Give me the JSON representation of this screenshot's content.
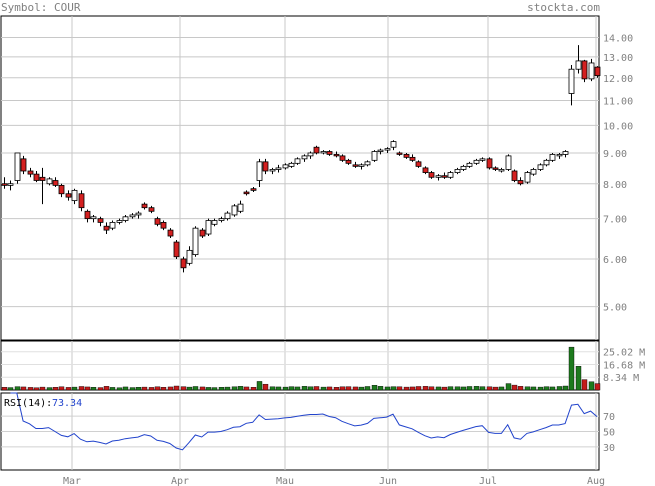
{
  "header": {
    "symbol_label": "Symbol:",
    "symbol": "COUR",
    "site": "stockta.com"
  },
  "chart_data": {
    "type": "candlestick",
    "price_axis": {
      "scale": "log",
      "ylim": [
        4.4,
        15.2
      ],
      "ticks": [
        "14.00",
        "13.00",
        "12.00",
        "11.00",
        "10.00",
        "9.00",
        "8.00",
        "7.00",
        "6.00",
        "5.00"
      ],
      "tick_values": [
        14,
        13,
        12,
        11,
        10,
        9,
        8,
        7,
        6,
        5
      ]
    },
    "x_axis": {
      "labels": [
        "Mar",
        "Apr",
        "Mau",
        "Jun",
        "Jul",
        "Aug"
      ],
      "grid": true
    },
    "candles": [
      [
        8.0,
        8.2,
        7.85,
        7.95
      ],
      [
        7.95,
        8.1,
        7.8,
        8.0
      ],
      [
        8.1,
        9.0,
        8.0,
        9.0
      ],
      [
        8.8,
        8.9,
        8.3,
        8.4
      ],
      [
        8.4,
        8.5,
        8.2,
        8.3
      ],
      [
        8.3,
        8.4,
        8.05,
        8.1
      ],
      [
        8.2,
        8.5,
        7.4,
        8.1
      ],
      [
        8.0,
        8.2,
        7.95,
        8.15
      ],
      [
        8.1,
        8.2,
        7.9,
        7.95
      ],
      [
        7.95,
        8.0,
        7.6,
        7.7
      ],
      [
        7.7,
        7.8,
        7.5,
        7.6
      ],
      [
        7.5,
        7.85,
        7.4,
        7.8
      ],
      [
        7.7,
        7.8,
        7.2,
        7.3
      ],
      [
        7.2,
        7.25,
        6.9,
        7.0
      ],
      [
        7.0,
        7.1,
        6.9,
        7.05
      ],
      [
        7.0,
        7.05,
        6.8,
        6.9
      ],
      [
        6.8,
        6.9,
        6.6,
        6.7
      ],
      [
        6.75,
        6.95,
        6.7,
        6.9
      ],
      [
        6.9,
        7.0,
        6.85,
        6.95
      ],
      [
        6.95,
        7.1,
        6.9,
        7.05
      ],
      [
        7.05,
        7.15,
        7.0,
        7.1
      ],
      [
        7.1,
        7.2,
        7.0,
        7.15
      ],
      [
        7.4,
        7.45,
        7.25,
        7.3
      ],
      [
        7.3,
        7.35,
        7.15,
        7.2
      ],
      [
        7.0,
        7.05,
        6.8,
        6.85
      ],
      [
        6.9,
        6.95,
        6.7,
        6.75
      ],
      [
        6.7,
        6.75,
        6.5,
        6.55
      ],
      [
        6.4,
        6.45,
        6.0,
        6.05
      ],
      [
        6.0,
        6.05,
        5.7,
        5.8
      ],
      [
        5.9,
        6.3,
        5.85,
        6.2
      ],
      [
        6.1,
        6.8,
        6.05,
        6.75
      ],
      [
        6.7,
        6.75,
        6.5,
        6.55
      ],
      [
        6.6,
        7.0,
        6.55,
        6.95
      ],
      [
        6.85,
        7.0,
        6.8,
        6.95
      ],
      [
        6.95,
        7.05,
        6.9,
        7.0
      ],
      [
        7.0,
        7.2,
        6.95,
        7.15
      ],
      [
        7.1,
        7.4,
        7.05,
        7.35
      ],
      [
        7.2,
        7.5,
        7.15,
        7.4
      ],
      [
        7.75,
        7.8,
        7.65,
        7.7
      ],
      [
        7.85,
        7.9,
        7.75,
        7.8
      ],
      [
        8.1,
        8.8,
        7.9,
        8.7
      ],
      [
        8.7,
        8.8,
        8.3,
        8.4
      ],
      [
        8.4,
        8.5,
        8.3,
        8.45
      ],
      [
        8.45,
        8.6,
        8.35,
        8.5
      ],
      [
        8.5,
        8.65,
        8.45,
        8.6
      ],
      [
        8.55,
        8.7,
        8.5,
        8.65
      ],
      [
        8.65,
        8.85,
        8.6,
        8.8
      ],
      [
        8.8,
        8.95,
        8.7,
        8.9
      ],
      [
        8.9,
        9.05,
        8.8,
        9.0
      ],
      [
        9.2,
        9.25,
        8.95,
        9.0
      ],
      [
        9.0,
        9.1,
        8.95,
        9.05
      ],
      [
        9.05,
        9.1,
        8.9,
        8.95
      ],
      [
        8.95,
        9.05,
        8.85,
        8.9
      ],
      [
        8.9,
        8.95,
        8.7,
        8.75
      ],
      [
        8.75,
        8.8,
        8.6,
        8.65
      ],
      [
        8.6,
        8.7,
        8.5,
        8.55
      ],
      [
        8.55,
        8.65,
        8.45,
        8.6
      ],
      [
        8.6,
        8.75,
        8.55,
        8.7
      ],
      [
        8.75,
        9.1,
        8.7,
        9.05
      ],
      [
        9.05,
        9.15,
        8.95,
        9.1
      ],
      [
        9.1,
        9.2,
        9.0,
        9.15
      ],
      [
        9.2,
        9.45,
        9.1,
        9.4
      ],
      [
        9.0,
        9.05,
        8.9,
        8.95
      ],
      [
        8.95,
        9.0,
        8.8,
        8.85
      ],
      [
        8.85,
        8.95,
        8.7,
        8.75
      ],
      [
        8.7,
        8.75,
        8.5,
        8.55
      ],
      [
        8.5,
        8.55,
        8.3,
        8.35
      ],
      [
        8.35,
        8.4,
        8.15,
        8.2
      ],
      [
        8.2,
        8.3,
        8.1,
        8.25
      ],
      [
        8.25,
        8.35,
        8.15,
        8.2
      ],
      [
        8.2,
        8.4,
        8.15,
        8.35
      ],
      [
        8.35,
        8.5,
        8.3,
        8.45
      ],
      [
        8.45,
        8.6,
        8.4,
        8.55
      ],
      [
        8.55,
        8.7,
        8.5,
        8.65
      ],
      [
        8.65,
        8.8,
        8.6,
        8.75
      ],
      [
        8.75,
        8.85,
        8.7,
        8.8
      ],
      [
        8.8,
        8.85,
        8.45,
        8.5
      ],
      [
        8.5,
        8.55,
        8.4,
        8.45
      ],
      [
        8.4,
        8.5,
        8.35,
        8.45
      ],
      [
        8.45,
        8.95,
        8.4,
        8.9
      ],
      [
        8.4,
        8.45,
        8.05,
        8.1
      ],
      [
        8.1,
        8.2,
        7.95,
        8.0
      ],
      [
        8.05,
        8.4,
        8.0,
        8.35
      ],
      [
        8.3,
        8.5,
        8.25,
        8.45
      ],
      [
        8.45,
        8.65,
        8.4,
        8.6
      ],
      [
        8.6,
        8.8,
        8.55,
        8.75
      ],
      [
        8.75,
        9.0,
        8.7,
        8.95
      ],
      [
        8.9,
        9.0,
        8.8,
        8.95
      ],
      [
        8.95,
        9.1,
        8.85,
        9.05
      ],
      [
        11.3,
        12.6,
        10.8,
        12.4
      ],
      [
        12.4,
        13.6,
        12.2,
        12.8
      ],
      [
        12.8,
        12.85,
        11.8,
        11.95
      ],
      [
        11.95,
        12.9,
        11.85,
        12.7
      ],
      [
        12.5,
        12.55,
        12.0,
        12.1
      ]
    ],
    "volume": {
      "ticks": [
        "25.02 M",
        "16.68 M",
        "8.34 M"
      ],
      "tick_values": [
        25.02,
        16.68,
        8.34
      ],
      "ylim": [
        0,
        32
      ],
      "values_m": [
        1.8,
        1.6,
        2.2,
        2.0,
        1.7,
        1.5,
        1.9,
        1.6,
        1.8,
        2.1,
        1.7,
        1.9,
        2.3,
        2.0,
        1.8,
        1.6,
        2.4,
        1.7,
        1.5,
        2.0,
        1.6,
        1.8,
        1.9,
        1.7,
        2.1,
        1.8,
        2.0,
        2.6,
        2.2,
        1.9,
        2.3,
        2.0,
        1.7,
        1.6,
        1.8,
        1.9,
        2.1,
        2.4,
        2.0,
        1.8,
        5.6,
        3.8,
        2.1,
        2.0,
        1.9,
        2.2,
        2.0,
        2.4,
        2.1,
        2.3,
        1.9,
        2.0,
        1.8,
        2.1,
        2.2,
        2.0,
        1.9,
        2.3,
        3.1,
        2.4,
        2.0,
        2.2,
        2.1,
        1.9,
        2.0,
        2.3,
        2.4,
        2.1,
        2.0,
        1.9,
        2.2,
        2.1,
        2.0,
        2.3,
        2.4,
        2.2,
        2.1,
        1.9,
        2.0,
        4.2,
        3.2,
        2.4,
        2.1,
        2.0,
        1.9,
        2.2,
        2.0,
        2.3,
        2.6,
        28.0,
        15.5,
        6.8,
        5.4,
        4.2
      ]
    },
    "rsi": {
      "label": "RSI(14):",
      "value": "73.34",
      "ticks": [
        "70",
        "50",
        "30"
      ],
      "tick_values": [
        70,
        50,
        30
      ]
    }
  }
}
